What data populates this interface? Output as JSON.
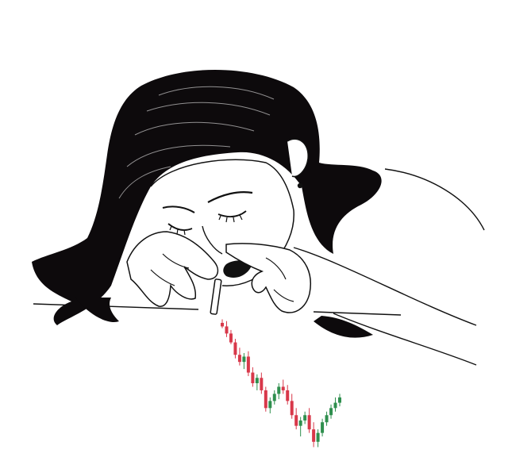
{
  "illustration": {
    "subject": "line-art-woman-with-candlestick-chart",
    "colors": {
      "ink": "#111111",
      "hair": "#0d0a0c",
      "bullish_candle": "#2f8f4e",
      "bearish_candle": "#d8384a",
      "background": "#ffffff"
    }
  },
  "chart_data": {
    "type": "candlestick",
    "trend": "down-then-partial-recovery",
    "candles": [
      {
        "o": 100,
        "h": 102,
        "l": 97,
        "c": 98
      },
      {
        "o": 98,
        "h": 101,
        "l": 92,
        "c": 94
      },
      {
        "o": 94,
        "h": 96,
        "l": 88,
        "c": 89
      },
      {
        "o": 89,
        "h": 91,
        "l": 80,
        "c": 82
      },
      {
        "o": 82,
        "h": 86,
        "l": 76,
        "c": 78
      },
      {
        "o": 78,
        "h": 83,
        "l": 74,
        "c": 81
      },
      {
        "o": 81,
        "h": 84,
        "l": 70,
        "c": 72
      },
      {
        "o": 72,
        "h": 75,
        "l": 64,
        "c": 66
      },
      {
        "o": 66,
        "h": 71,
        "l": 62,
        "c": 69
      },
      {
        "o": 69,
        "h": 72,
        "l": 60,
        "c": 62
      },
      {
        "o": 62,
        "h": 64,
        "l": 50,
        "c": 52
      },
      {
        "o": 52,
        "h": 58,
        "l": 49,
        "c": 56
      },
      {
        "o": 56,
        "h": 62,
        "l": 54,
        "c": 60
      },
      {
        "o": 60,
        "h": 66,
        "l": 57,
        "c": 64
      },
      {
        "o": 64,
        "h": 68,
        "l": 60,
        "c": 62
      },
      {
        "o": 62,
        "h": 65,
        "l": 54,
        "c": 56
      },
      {
        "o": 56,
        "h": 60,
        "l": 46,
        "c": 48
      },
      {
        "o": 48,
        "h": 52,
        "l": 40,
        "c": 42
      },
      {
        "o": 42,
        "h": 47,
        "l": 36,
        "c": 45
      },
      {
        "o": 45,
        "h": 50,
        "l": 43,
        "c": 48
      },
      {
        "o": 48,
        "h": 52,
        "l": 38,
        "c": 40
      },
      {
        "o": 40,
        "h": 44,
        "l": 30,
        "c": 33
      },
      {
        "o": 33,
        "h": 40,
        "l": 30,
        "c": 38
      },
      {
        "o": 38,
        "h": 46,
        "l": 36,
        "c": 44
      },
      {
        "o": 44,
        "h": 50,
        "l": 42,
        "c": 48
      },
      {
        "o": 48,
        "h": 54,
        "l": 46,
        "c": 52
      },
      {
        "o": 52,
        "h": 58,
        "l": 50,
        "c": 55
      },
      {
        "o": 55,
        "h": 60,
        "l": 53,
        "c": 58
      }
    ],
    "ylim": [
      28,
      104
    ],
    "grid": false,
    "legend": "none"
  }
}
